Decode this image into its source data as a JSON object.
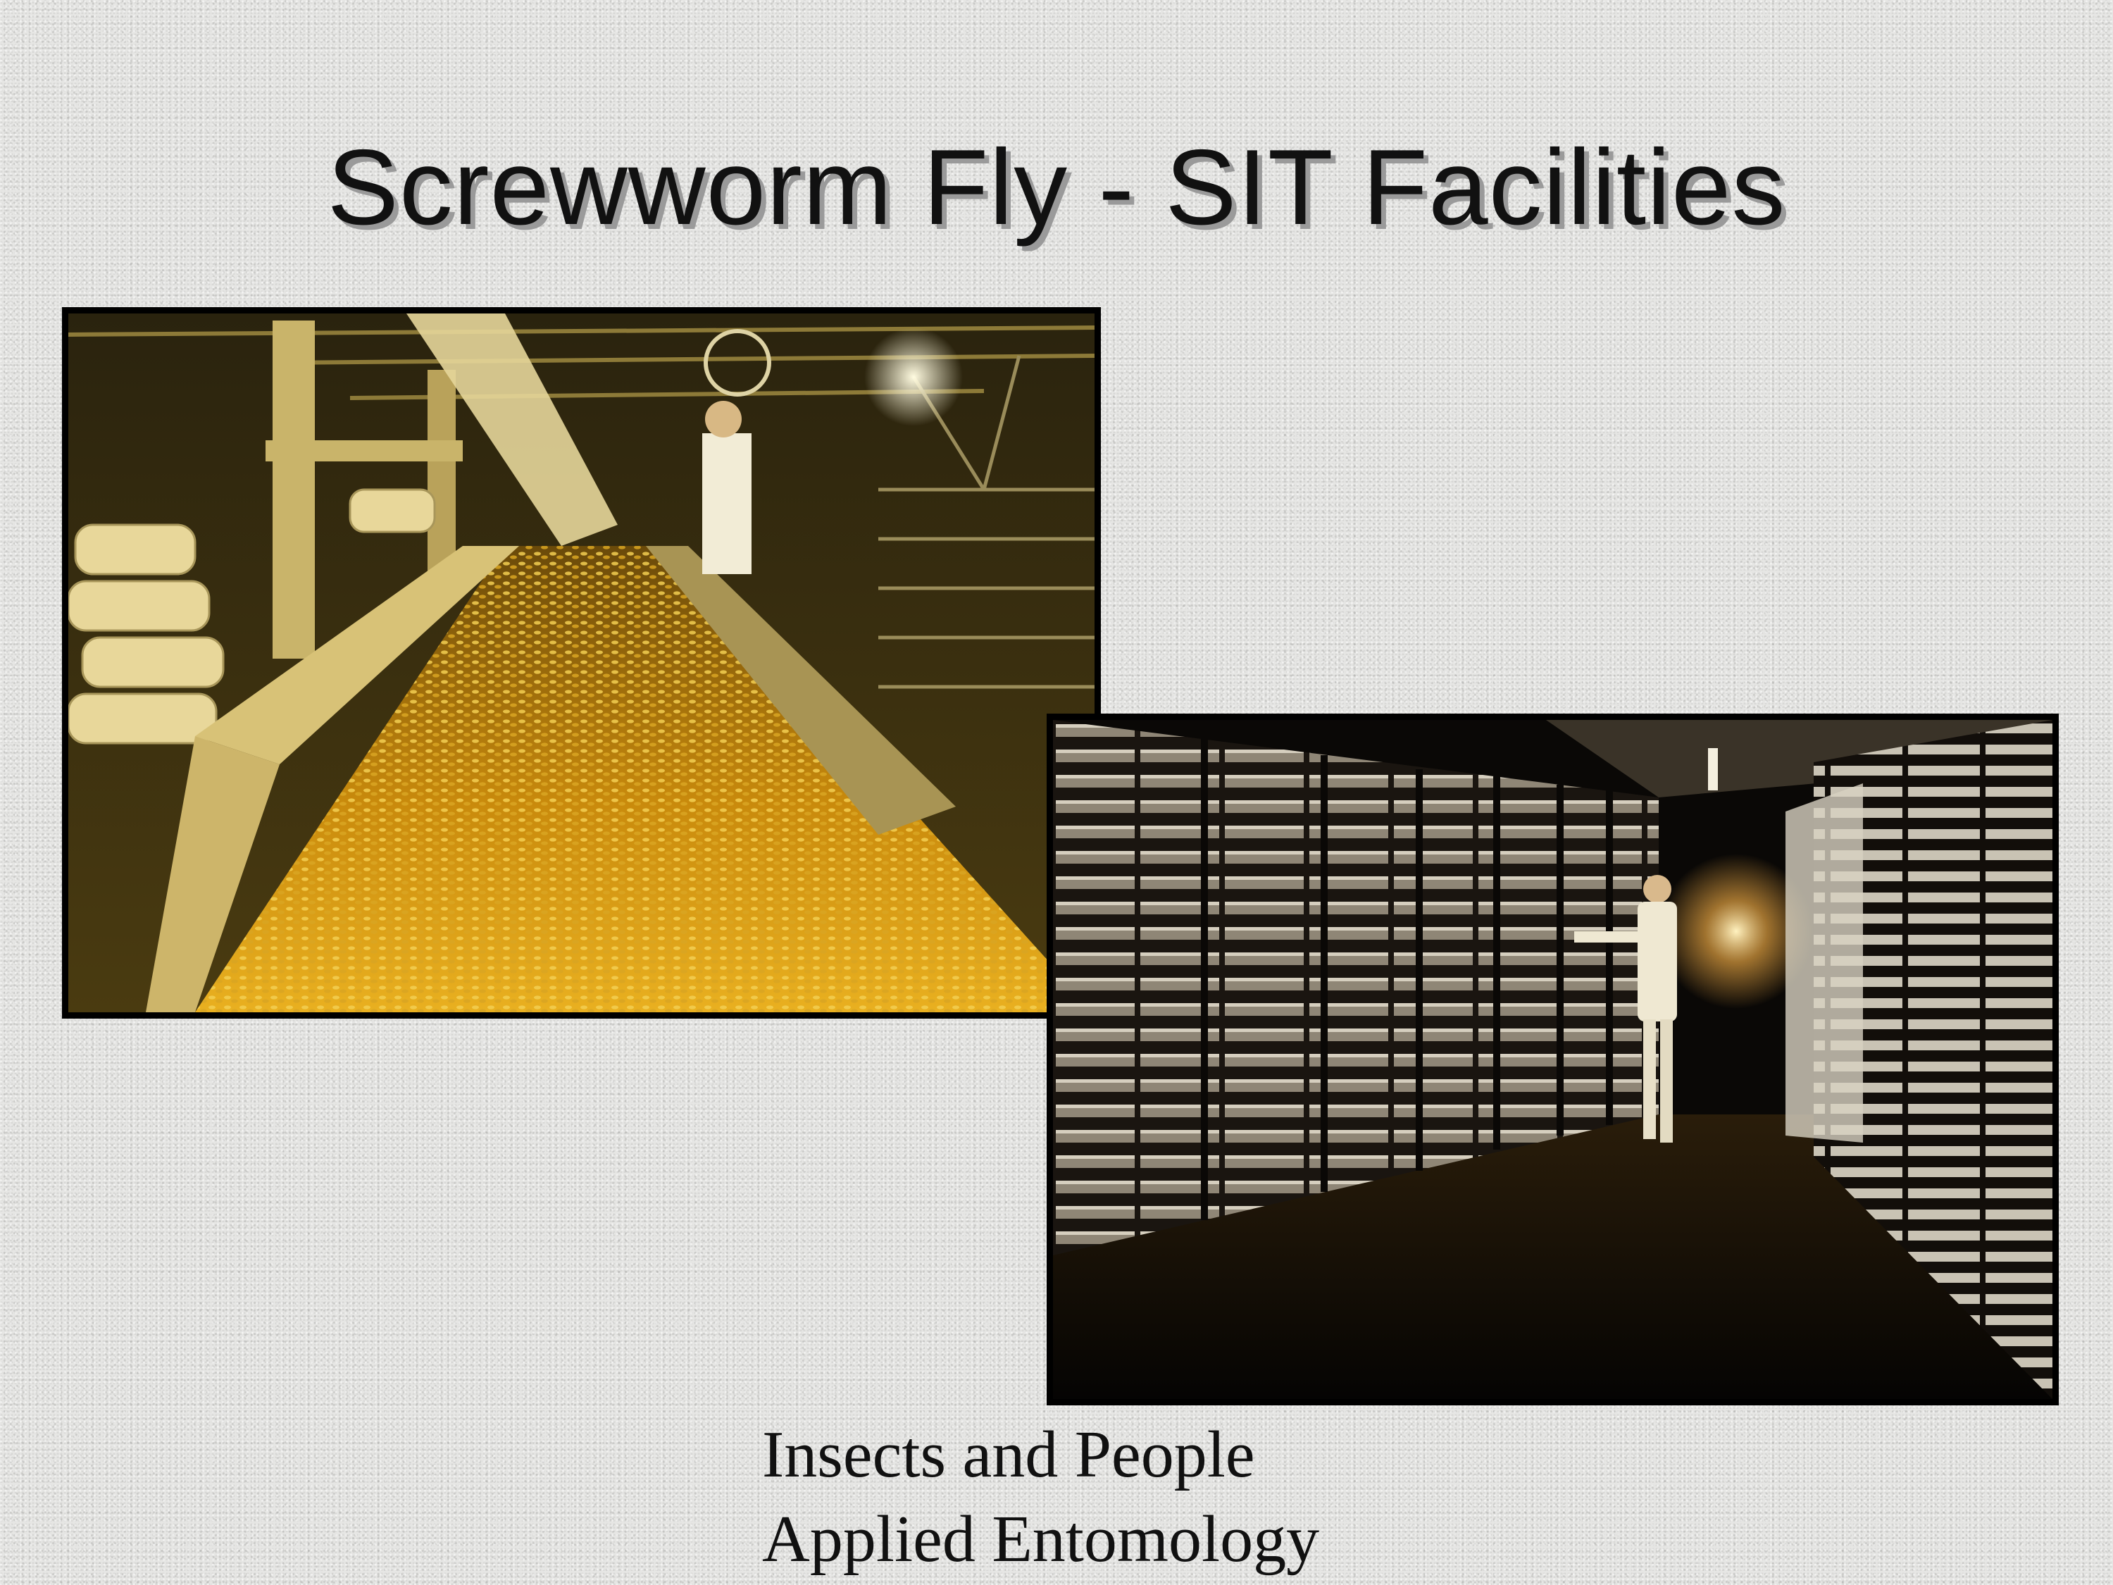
{
  "slide": {
    "title": "Screwworm Fly - SIT Facilities",
    "caption": {
      "line1": "Insects and People",
      "line2": "Applied Entomology"
    }
  },
  "photos": [
    {
      "name": "pupae-conveyor-photo",
      "subject": "conveyor belt of screwworm pupae with worker and sacks"
    },
    {
      "name": "rearing-racks-photo",
      "subject": "worker among tall rearing tray racks"
    }
  ]
}
